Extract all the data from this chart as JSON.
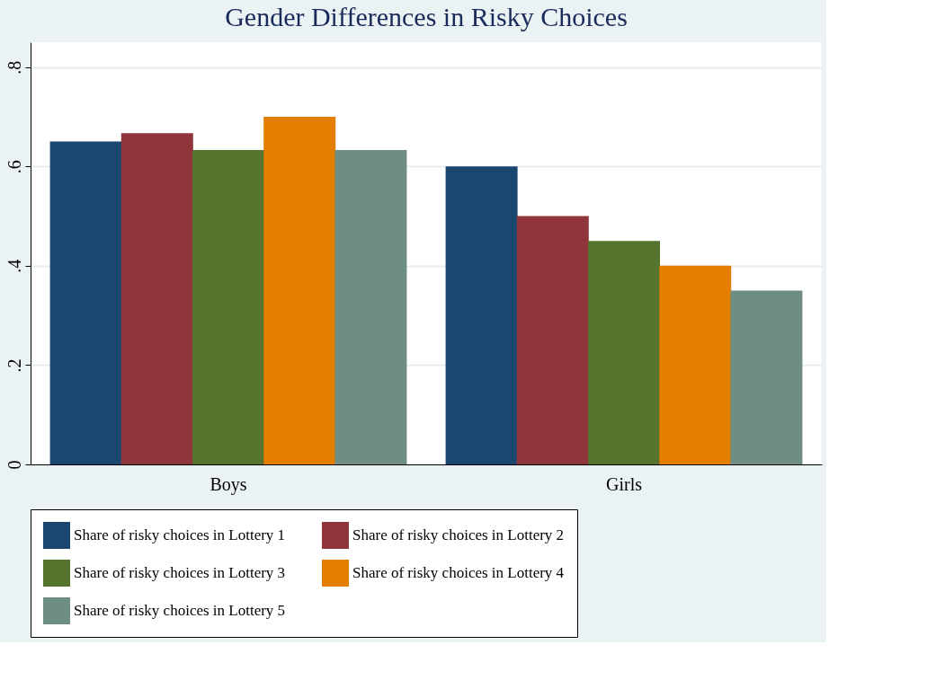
{
  "chart_data": {
    "type": "bar",
    "title": "Gender Differences in Risky Choices",
    "categories": [
      "Boys",
      "Girls"
    ],
    "series": [
      {
        "name": "Share of risky choices in Lottery 1",
        "color": "#1a476f",
        "values": [
          0.65,
          0.6
        ]
      },
      {
        "name": "Share of risky choices in Lottery 2",
        "color": "#90353b",
        "values": [
          0.667,
          0.5
        ]
      },
      {
        "name": "Share of risky choices in Lottery 3",
        "color": "#55752f",
        "values": [
          0.633,
          0.45
        ]
      },
      {
        "name": "Share of risky choices in Lottery 4",
        "color": "#e37e00",
        "values": [
          0.7,
          0.4
        ]
      },
      {
        "name": "Share of risky choices in Lottery 5",
        "color": "#6e8e84",
        "values": [
          0.633,
          0.35
        ]
      }
    ],
    "ylim": [
      0,
      0.85
    ],
    "yticks": [
      0,
      {
        "value": 0.2,
        "label": ".2"
      },
      {
        "value": 0.4,
        "label": ".4"
      },
      {
        "value": 0.6,
        "label": ".6"
      },
      {
        "value": 0.8,
        "label": ".8"
      }
    ],
    "grid": "y",
    "legend": "bottom"
  }
}
